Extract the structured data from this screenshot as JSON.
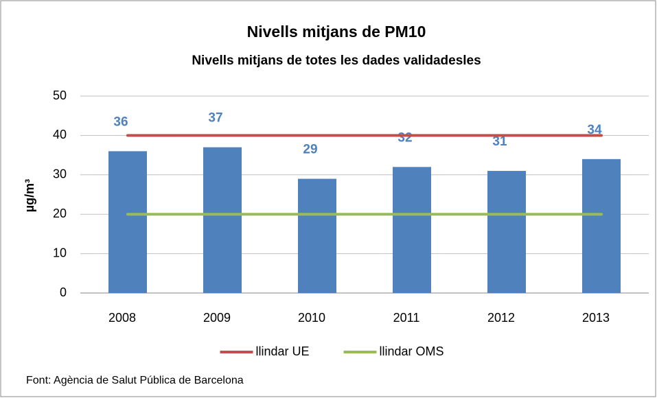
{
  "chart_data": {
    "type": "bar",
    "title": "Nivells mitjans de PM10",
    "subtitle": "Nivells mitjans de totes les dades validadesles",
    "y_label": "µg/m³",
    "categories": [
      "2008",
      "2009",
      "2010",
      "2011",
      "2012",
      "2013"
    ],
    "values": [
      36,
      37,
      29,
      32,
      31,
      34
    ],
    "color": "#4f81bd",
    "series": [
      {
        "name": "llindar UE",
        "type": "line",
        "color": "#c0504d",
        "values": [
          40,
          40,
          40,
          40,
          40,
          40
        ]
      },
      {
        "name": "llindar OMS",
        "type": "line",
        "color": "#9bbb59",
        "values": [
          20,
          20,
          20,
          20,
          20,
          20
        ]
      }
    ],
    "ylim": [
      0,
      50
    ],
    "yticks": [
      0,
      10,
      20,
      30,
      40,
      50
    ],
    "grid": true,
    "legend": "bottom",
    "source": "Font: Agència de Salut Pública de Barcelona"
  }
}
